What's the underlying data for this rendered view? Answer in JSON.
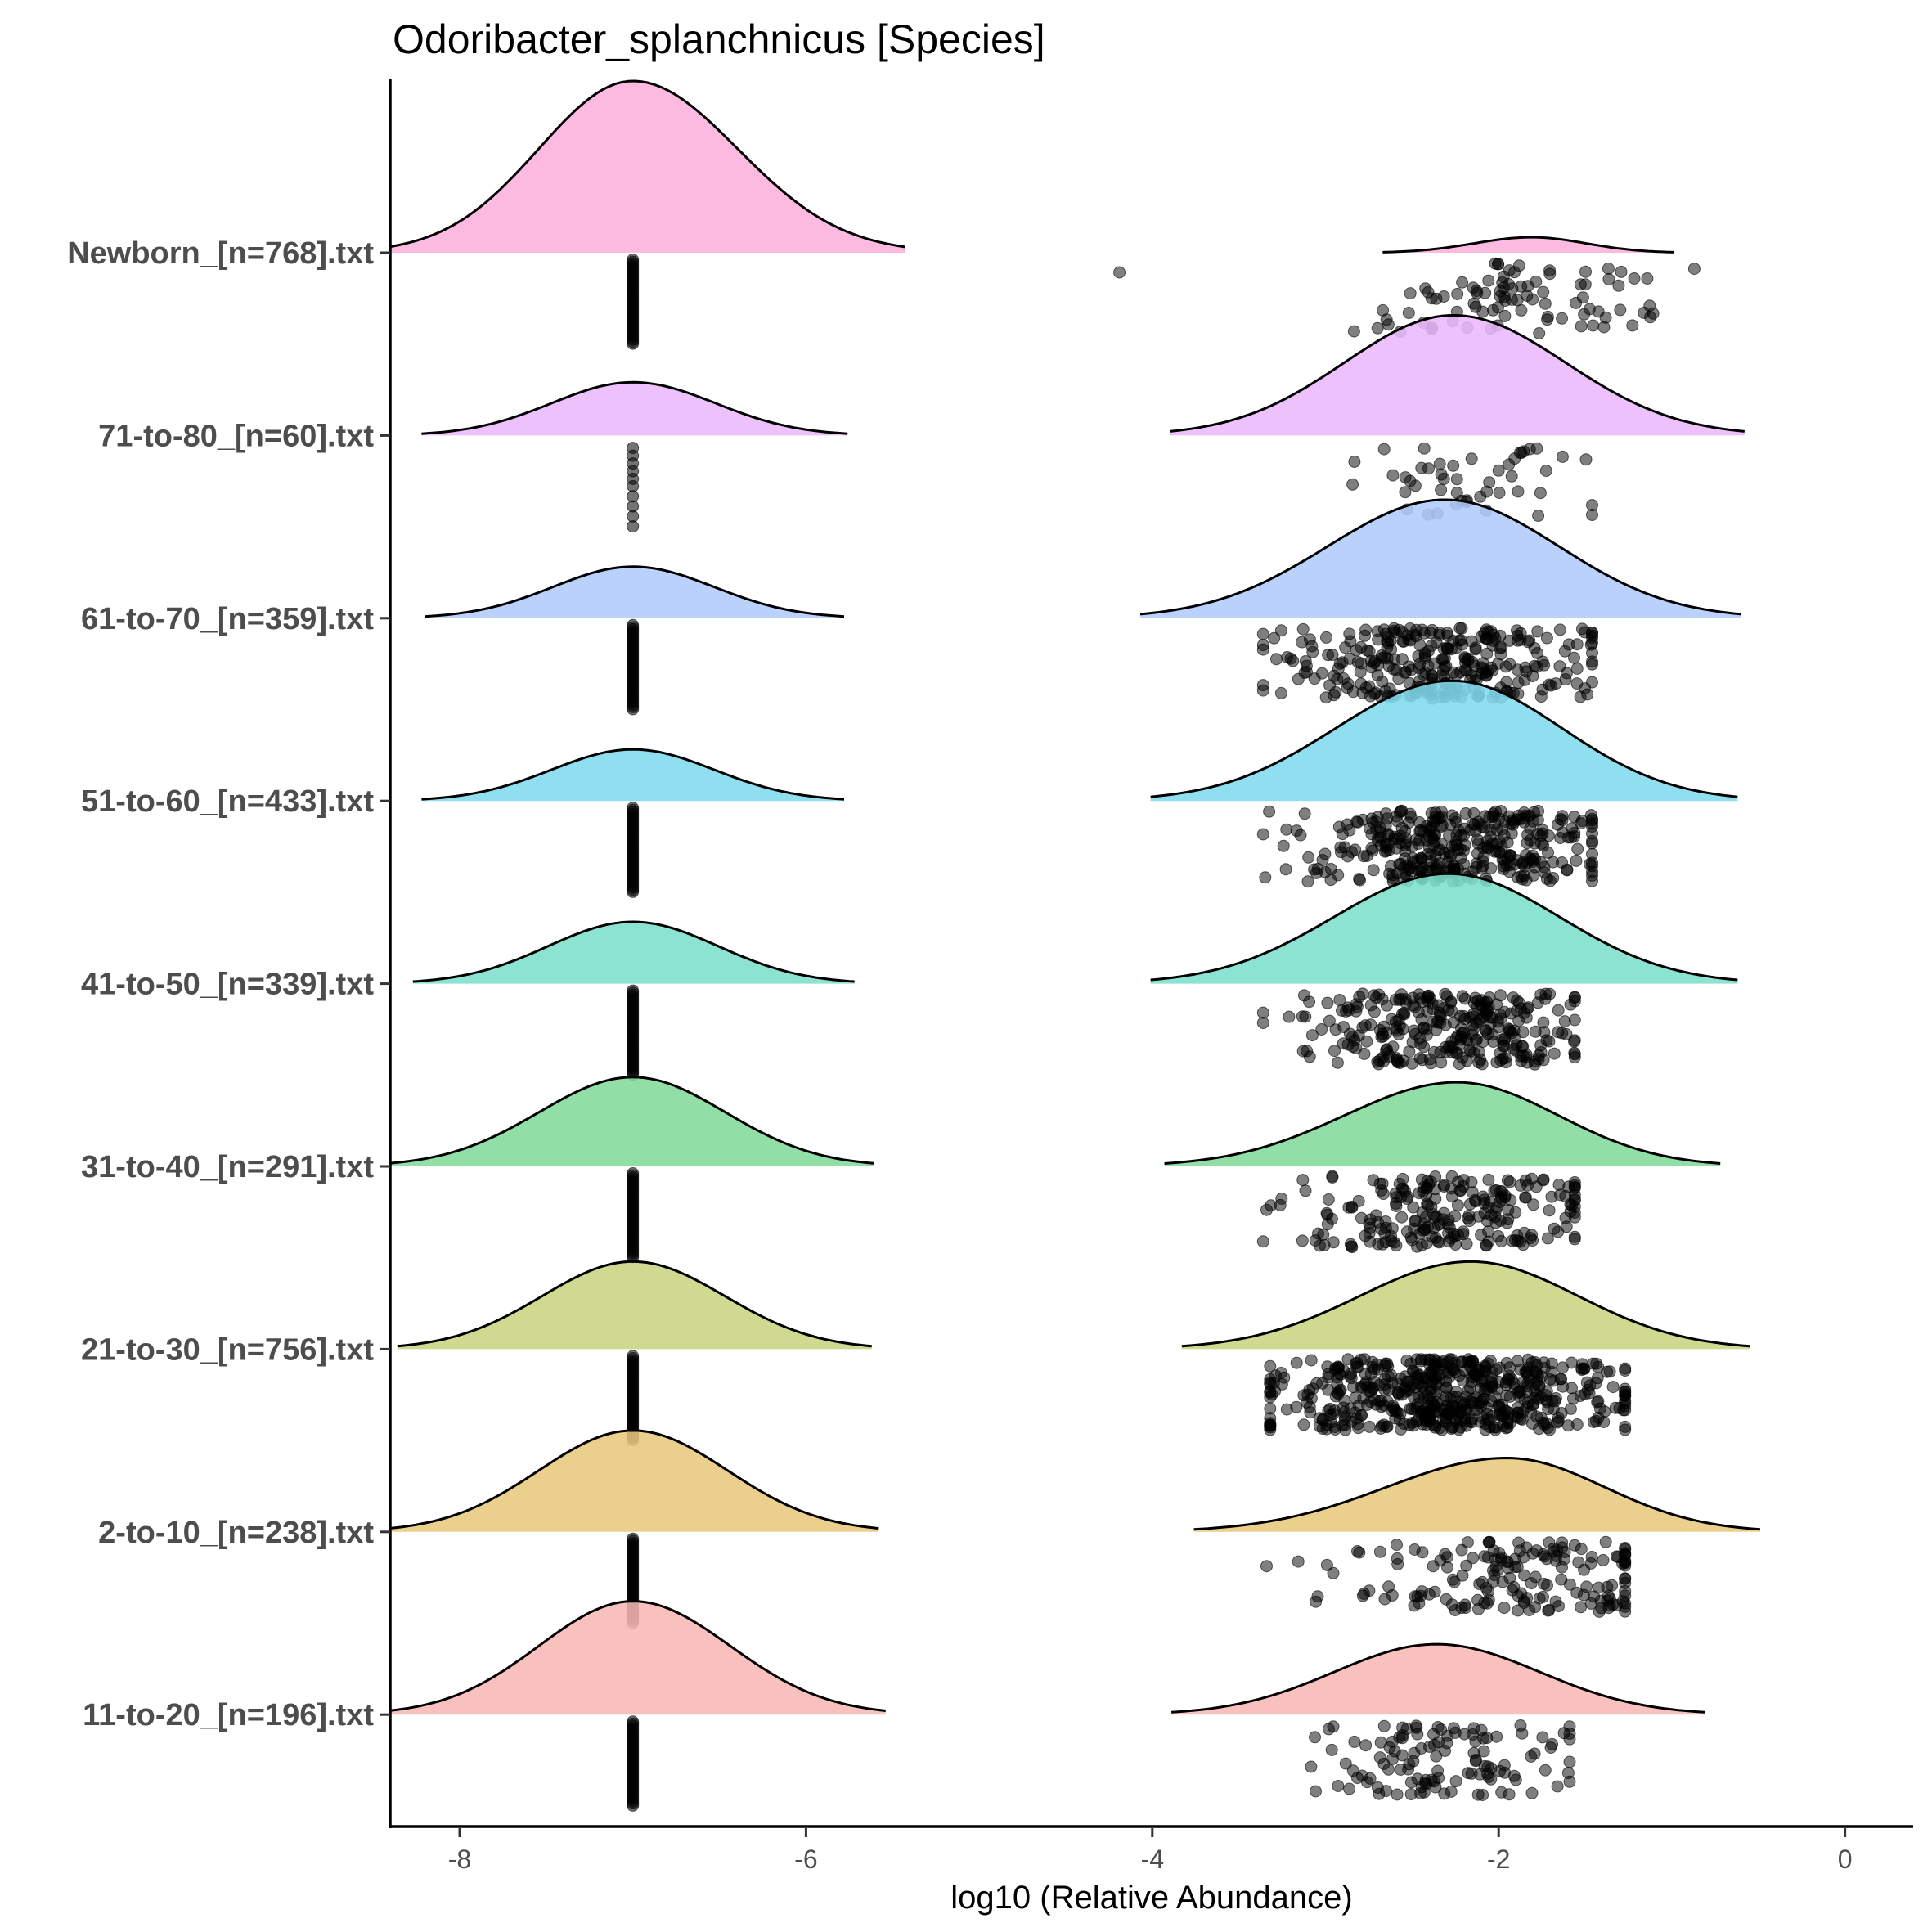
{
  "chart_data": {
    "type": "ridgeline-raincloud",
    "title": "Odoribacter_splanchnicus [Species]",
    "xlabel": "log10 (Relative Abundance)",
    "ylabel": "",
    "xlim": [
      -8.41,
      0.39
    ],
    "x_ticks": [
      -8,
      -6,
      -4,
      -2,
      0
    ],
    "x_tick_labels": [
      "-8",
      "-6",
      "-4",
      "-2",
      "0"
    ],
    "grid": false,
    "legend": "none",
    "point_color": "#000000",
    "zero_value": -7,
    "groups": [
      {
        "label": "Newborn_[n=768].txt",
        "color": "#FCB0DD",
        "left_density": {
          "peak": -7.0,
          "from": -8.41,
          "to": -5.43,
          "rel_height": 1.0
        },
        "right_density": {
          "peak": -1.81,
          "from": -2.67,
          "to": -0.99,
          "rel_height": 0.09
        },
        "zero_points": {
          "count": 40,
          "segments": [
            [
              0.02,
              0.48
            ]
          ]
        },
        "points": {
          "count": 90,
          "min": -2.95,
          "max": -0.87,
          "center": -1.85,
          "outliers": [
            -4.19
          ]
        }
      },
      {
        "label": "71-to-80_[n=60].txt",
        "color": "#EBB8FA",
        "left_density": {
          "peak": -7.0,
          "from": -8.22,
          "to": -5.76,
          "rel_height": 0.31
        },
        "right_density": {
          "peak": -2.26,
          "from": -3.9,
          "to": -0.58,
          "rel_height": 0.7
        },
        "zero_points": {
          "count": 10,
          "segments": [
            [
              0.05,
              0.22
            ],
            [
              0.26,
              0.48
            ]
          ]
        },
        "points": {
          "count": 48,
          "min": -2.99,
          "max": -1.46,
          "center": -2.2,
          "outliers": []
        }
      },
      {
        "label": "61-to-70_[n=359].txt",
        "color": "#AFCBFB",
        "left_density": {
          "peak": -7.0,
          "from": -8.2,
          "to": -5.78,
          "rel_height": 0.3
        },
        "right_density": {
          "peak": -2.31,
          "from": -4.07,
          "to": -0.6,
          "rel_height": 0.69
        },
        "zero_points": {
          "count": 40,
          "segments": [
            [
              0.02,
              0.48
            ]
          ]
        },
        "points": {
          "count": 300,
          "min": -3.36,
          "max": -1.46,
          "center": -2.3,
          "outliers": []
        }
      },
      {
        "label": "51-to-60_[n=433].txt",
        "color": "#7FDBEF",
        "left_density": {
          "peak": -7.0,
          "from": -8.22,
          "to": -5.78,
          "rel_height": 0.3
        },
        "right_density": {
          "peak": -2.27,
          "from": -4.01,
          "to": -0.62,
          "rel_height": 0.7
        },
        "zero_points": {
          "count": 40,
          "segments": [
            [
              0.02,
              0.48
            ]
          ]
        },
        "points": {
          "count": 360,
          "min": -3.36,
          "max": -1.46,
          "center": -2.3,
          "outliers": []
        }
      },
      {
        "label": "41-to-50_[n=339].txt",
        "color": "#7DDFCB",
        "left_density": {
          "peak": -7.0,
          "from": -8.27,
          "to": -5.72,
          "rel_height": 0.36
        },
        "right_density": {
          "peak": -2.29,
          "from": -4.01,
          "to": -0.62,
          "rel_height": 0.64
        },
        "zero_points": {
          "count": 40,
          "segments": [
            [
              0.02,
              0.48
            ]
          ]
        },
        "points": {
          "count": 290,
          "min": -3.36,
          "max": -1.56,
          "center": -2.3,
          "outliers": []
        }
      },
      {
        "label": "31-to-40_[n=291].txt",
        "color": "#82DA9A",
        "left_density": {
          "peak": -7.0,
          "from": -8.41,
          "to": -5.61,
          "rel_height": 0.52
        },
        "right_density": {
          "peak": -2.24,
          "from": -3.93,
          "to": -0.72,
          "rel_height": 0.49
        },
        "zero_points": {
          "count": 40,
          "segments": [
            [
              0.02,
              0.48
            ]
          ]
        },
        "points": {
          "count": 230,
          "min": -3.36,
          "max": -1.56,
          "center": -2.3,
          "outliers": []
        }
      },
      {
        "label": "21-to-30_[n=756].txt",
        "color": "#C8D581",
        "left_density": {
          "peak": -7.0,
          "from": -8.36,
          "to": -5.62,
          "rel_height": 0.51
        },
        "right_density": {
          "peak": -2.16,
          "from": -3.83,
          "to": -0.55,
          "rel_height": 0.51
        },
        "zero_points": {
          "count": 40,
          "segments": [
            [
              0.02,
              0.48
            ]
          ]
        },
        "points": {
          "count": 560,
          "min": -3.32,
          "max": -1.27,
          "center": -2.25,
          "outliers": []
        }
      },
      {
        "label": "2-to-10_[n=238].txt",
        "color": "#E7C87D",
        "left_density": {
          "peak": -7.0,
          "from": -8.41,
          "to": -5.58,
          "rel_height": 0.59
        },
        "right_density": {
          "peak": -1.95,
          "from": -3.76,
          "to": -0.49,
          "rel_height": 0.43
        },
        "zero_points": {
          "count": 40,
          "segments": [
            [
              0.02,
              0.48
            ]
          ]
        },
        "points": {
          "count": 170,
          "min": -3.34,
          "max": -1.27,
          "center": -1.9,
          "outliers": []
        }
      },
      {
        "label": "11-to-20_[n=196].txt",
        "color": "#F8B8B5",
        "left_density": {
          "peak": -7.0,
          "from": -8.41,
          "to": -5.54,
          "rel_height": 0.66
        },
        "right_density": {
          "peak": -2.36,
          "from": -3.89,
          "to": -0.81,
          "rel_height": 0.41
        },
        "zero_points": {
          "count": 40,
          "segments": [
            [
              0.02,
              0.48
            ]
          ]
        },
        "points": {
          "count": 120,
          "min": -3.29,
          "max": -1.59,
          "center": -2.3,
          "outliers": []
        }
      }
    ]
  }
}
